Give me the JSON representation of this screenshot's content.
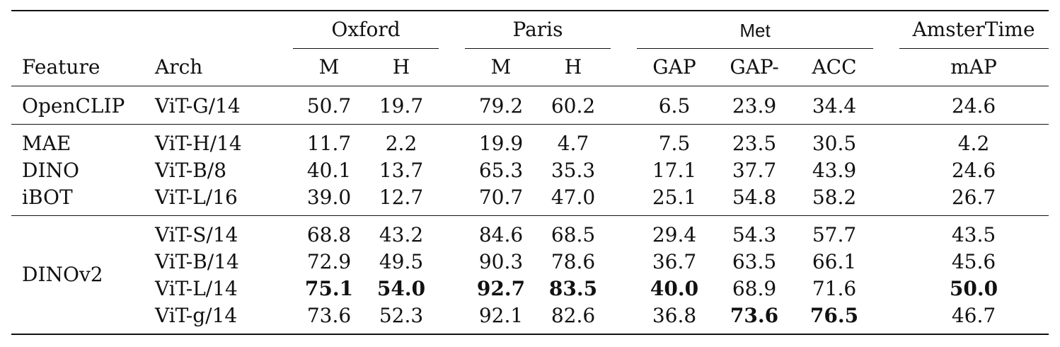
{
  "table": {
    "group_headers": {
      "oxford": "Oxford",
      "paris": "Paris",
      "met": "Met",
      "amstertime": "AmsterTime"
    },
    "column_headers": {
      "feature": "Feature",
      "arch": "Arch",
      "oxford_m": "M",
      "oxford_h": "H",
      "paris_m": "M",
      "paris_h": "H",
      "met_gap": "GAP",
      "met_gap_minus": "GAP-",
      "met_acc": "ACC",
      "amstertime_map": "mAP"
    },
    "rows": [
      {
        "feature": "OpenCLIP",
        "arch": "ViT-G/14",
        "values": [
          "50.7",
          "19.7",
          "79.2",
          "60.2",
          "6.5",
          "23.9",
          "34.4",
          "24.6"
        ],
        "bold": []
      },
      {
        "feature": "MAE",
        "arch": "ViT-H/14",
        "values": [
          "11.7",
          "2.2",
          "19.9",
          "4.7",
          "7.5",
          "23.5",
          "30.5",
          "4.2"
        ],
        "bold": []
      },
      {
        "feature": "DINO",
        "arch": "ViT-B/8",
        "values": [
          "40.1",
          "13.7",
          "65.3",
          "35.3",
          "17.1",
          "37.7",
          "43.9",
          "24.6"
        ],
        "bold": []
      },
      {
        "feature": "iBOT",
        "arch": "ViT-L/16",
        "values": [
          "39.0",
          "12.7",
          "70.7",
          "47.0",
          "25.1",
          "54.8",
          "58.2",
          "26.7"
        ],
        "bold": []
      },
      {
        "feature": "",
        "arch": "ViT-S/14",
        "values": [
          "68.8",
          "43.2",
          "84.6",
          "68.5",
          "29.4",
          "54.3",
          "57.7",
          "43.5"
        ],
        "bold": []
      },
      {
        "feature": "",
        "arch": "ViT-B/14",
        "values": [
          "72.9",
          "49.5",
          "90.3",
          "78.6",
          "36.7",
          "63.5",
          "66.1",
          "45.6"
        ],
        "bold": []
      },
      {
        "feature": "",
        "arch": "ViT-L/14",
        "values": [
          "75.1",
          "54.0",
          "92.7",
          "83.5",
          "40.0",
          "68.9",
          "71.6",
          "50.0"
        ],
        "bold": [
          0,
          1,
          2,
          3,
          4,
          7
        ]
      },
      {
        "feature": "",
        "arch": "ViT-g/14",
        "values": [
          "73.6",
          "52.3",
          "92.1",
          "82.6",
          "36.8",
          "73.6",
          "76.5",
          "46.7"
        ],
        "bold": [
          5,
          6
        ]
      }
    ],
    "group_feature": "DINOv2"
  }
}
